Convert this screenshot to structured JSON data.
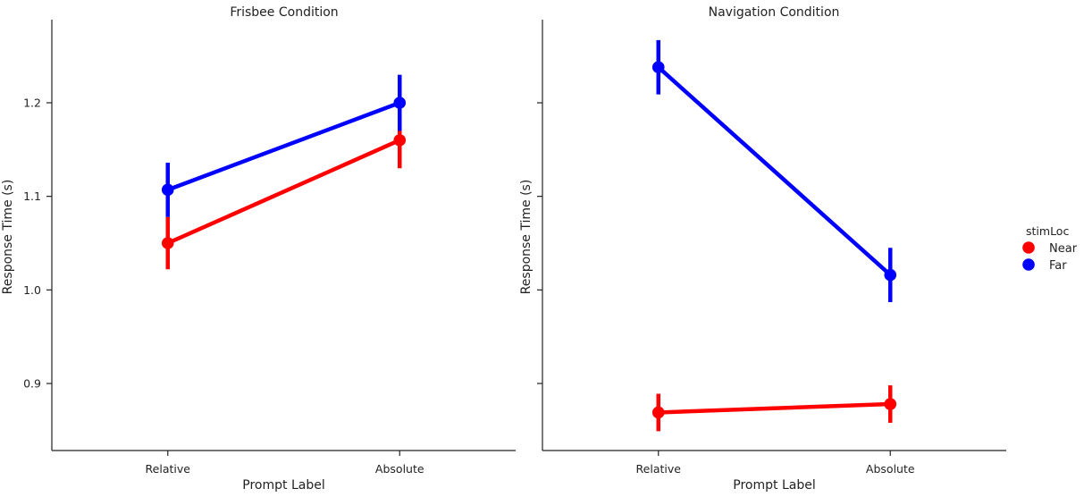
{
  "chart_data": [
    {
      "type": "line",
      "title": "Frisbee Condition",
      "xlabel": "Prompt Label",
      "ylabel": "Response Time (s)",
      "categories": [
        "Relative",
        "Absolute"
      ],
      "ylim": [
        0.83,
        1.285
      ],
      "yticks": [
        0.9,
        1.0,
        1.1,
        1.2
      ],
      "ytick_labels": [
        "0.9",
        "1.0",
        "1.1",
        "1.2"
      ],
      "series": [
        {
          "name": "Near",
          "values": [
            1.05,
            1.16
          ],
          "err_low": [
            1.022,
            1.13
          ],
          "err_high": [
            1.078,
            1.19
          ],
          "color": "#ff0000"
        },
        {
          "name": "Far",
          "values": [
            1.107,
            1.2
          ],
          "err_low": [
            1.078,
            1.17
          ],
          "err_high": [
            1.136,
            1.23
          ],
          "color": "#0000ff"
        }
      ]
    },
    {
      "type": "line",
      "title": "Navigation Condition",
      "xlabel": "Prompt Label",
      "ylabel": "Response Time (s)",
      "categories": [
        "Relative",
        "Absolute"
      ],
      "ylim": [
        0.83,
        1.285
      ],
      "yticks": [
        0.9,
        1.0,
        1.1,
        1.2
      ],
      "ytick_labels": [
        "",
        "",
        "",
        ""
      ],
      "series": [
        {
          "name": "Near",
          "values": [
            0.869,
            0.878
          ],
          "err_low": [
            0.849,
            0.858
          ],
          "err_high": [
            0.889,
            0.898
          ],
          "color": "#ff0000"
        },
        {
          "name": "Far",
          "values": [
            1.238,
            1.016
          ],
          "err_low": [
            1.209,
            0.987
          ],
          "err_high": [
            1.267,
            1.045
          ],
          "color": "#0000ff"
        }
      ]
    }
  ],
  "legend": {
    "title": "stimLoc",
    "placement": "right",
    "items": [
      {
        "label": "Near",
        "color": "#ff0000"
      },
      {
        "label": "Far",
        "color": "#0000ff"
      }
    ]
  }
}
